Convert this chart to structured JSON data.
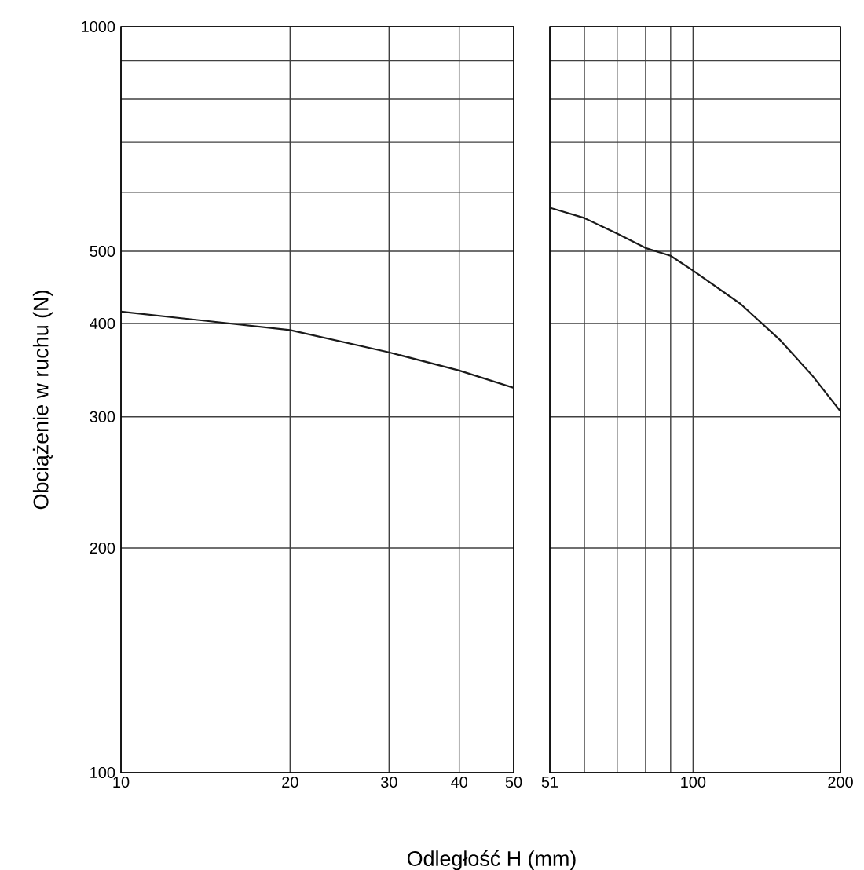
{
  "chart_data": [
    {
      "type": "line",
      "ylabel": "Obciążenie w ruchu (N)",
      "xlabel": "Odległość H (mm)",
      "log": "xy",
      "grid": true,
      "x": [
        10,
        20,
        30,
        40,
        50
      ],
      "values": [
        415,
        392,
        366,
        346,
        328
      ],
      "color": "#1a1a1a",
      "xlim": [
        10,
        50
      ],
      "ylim": [
        100,
        1000
      ],
      "xticks": [
        10,
        20,
        30,
        40,
        50
      ],
      "yticks": [
        100,
        200,
        300,
        400,
        500,
        {
          "value": 600,
          "label": null
        },
        {
          "value": 700,
          "label": null
        },
        {
          "value": 800,
          "label": null
        },
        {
          "value": 900,
          "label": null
        },
        1000
      ]
    },
    {
      "type": "line",
      "log": "xy",
      "grid": true,
      "tick_labels": "x",
      "x": [
        51,
        60,
        70,
        80,
        90,
        100,
        125,
        150,
        175,
        200
      ],
      "values": [
        572,
        554,
        528,
        505,
        493,
        471,
        425,
        381,
        341,
        305
      ],
      "color": "#1a1a1a",
      "xlim": [
        51,
        200
      ],
      "ylim": [
        100,
        1000
      ],
      "xticks": [
        51,
        {
          "value": 60,
          "label": null
        },
        {
          "value": 70,
          "label": null
        },
        {
          "value": 80,
          "label": null
        },
        {
          "value": 90,
          "label": null
        },
        100,
        200
      ],
      "yticks": [
        100,
        200,
        300,
        400,
        500,
        {
          "value": 600,
          "label": null
        },
        {
          "value": 700,
          "label": null
        },
        {
          "value": 800,
          "label": null
        },
        {
          "value": 900,
          "label": null
        },
        1000
      ]
    }
  ]
}
